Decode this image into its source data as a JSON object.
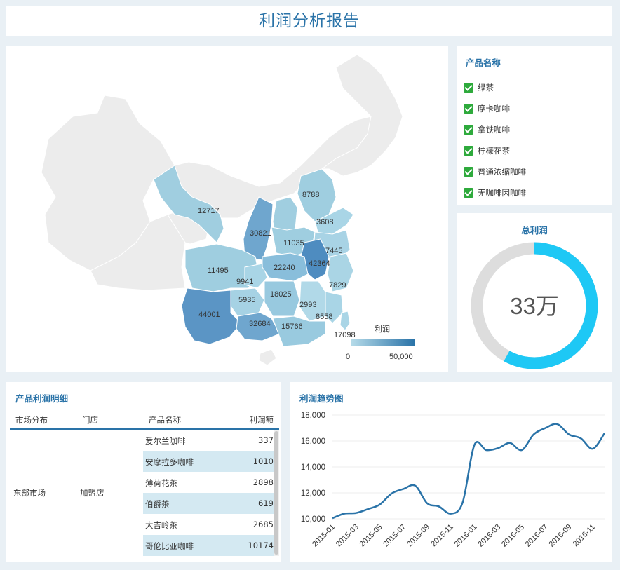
{
  "header": {
    "title": "利润分析报告"
  },
  "map": {
    "legend_title": "利润",
    "legend_min": "0",
    "legend_max": "50,000",
    "region_values": [
      "12717",
      "30821",
      "8788",
      "3608",
      "11035",
      "7445",
      "42364",
      "11495",
      "22240",
      "9941",
      "18025",
      "5935",
      "2993",
      "7829",
      "8558",
      "44001",
      "32684",
      "15766",
      "17098"
    ]
  },
  "filter": {
    "title": "产品名称",
    "items": [
      "绿茶",
      "摩卡咖啡",
      "拿铁咖啡",
      "柠檬花茶",
      "普通浓缩咖啡",
      "无咖啡因咖啡"
    ]
  },
  "kpi": {
    "title": "总利润",
    "value": "33万",
    "fill_fraction": 0.58
  },
  "table": {
    "title": "产品利润明细",
    "headers": [
      "市场分布",
      "门店",
      "产品名称",
      "利润额"
    ],
    "market": "东部市场",
    "store": "加盟店",
    "rows": [
      {
        "name": "爱尔兰咖啡",
        "value": "337"
      },
      {
        "name": "安摩拉多咖啡",
        "value": "1010"
      },
      {
        "name": "薄荷花茶",
        "value": "2898"
      },
      {
        "name": "伯爵茶",
        "value": "619"
      },
      {
        "name": "大吉岭茶",
        "value": "2685"
      },
      {
        "name": "哥伦比亚咖啡",
        "value": "10174"
      }
    ]
  },
  "chart_data": {
    "type": "line",
    "title": "利润趋势图",
    "x": [
      "2015-01",
      "2015-02",
      "2015-03",
      "2015-04",
      "2015-05",
      "2015-06",
      "2015-07",
      "2015-08",
      "2015-09",
      "2015-10",
      "2015-11",
      "2015-12",
      "2016-01",
      "2016-02",
      "2016-03",
      "2016-04",
      "2016-05",
      "2016-06",
      "2016-07",
      "2016-08",
      "2016-09",
      "2016-10",
      "2016-11",
      "2016-12"
    ],
    "x_tick_labels": [
      "2015-01",
      "2015-03",
      "2015-05",
      "2015-07",
      "2015-09",
      "2015-11",
      "2016-01",
      "2016-03",
      "2016-05",
      "2016-07",
      "2016-09",
      "2016-11"
    ],
    "y_tick_labels": [
      "10,000",
      "12,000",
      "14,000",
      "16,000",
      "18,000"
    ],
    "values": [
      10050,
      10400,
      10450,
      10750,
      11100,
      11950,
      12300,
      12550,
      11200,
      10950,
      10400,
      11250,
      15700,
      15300,
      15450,
      15850,
      15300,
      16500,
      17000,
      17300,
      16500,
      16200,
      15400,
      16600
    ],
    "ylim": [
      10000,
      18000
    ],
    "grid": true,
    "color": "#2a73a8"
  },
  "colors": {
    "accent": "#2a73a8",
    "kpi_ring": "#1ec8f5",
    "kpi_track": "#dddddd",
    "check": "#2eaa3c"
  }
}
